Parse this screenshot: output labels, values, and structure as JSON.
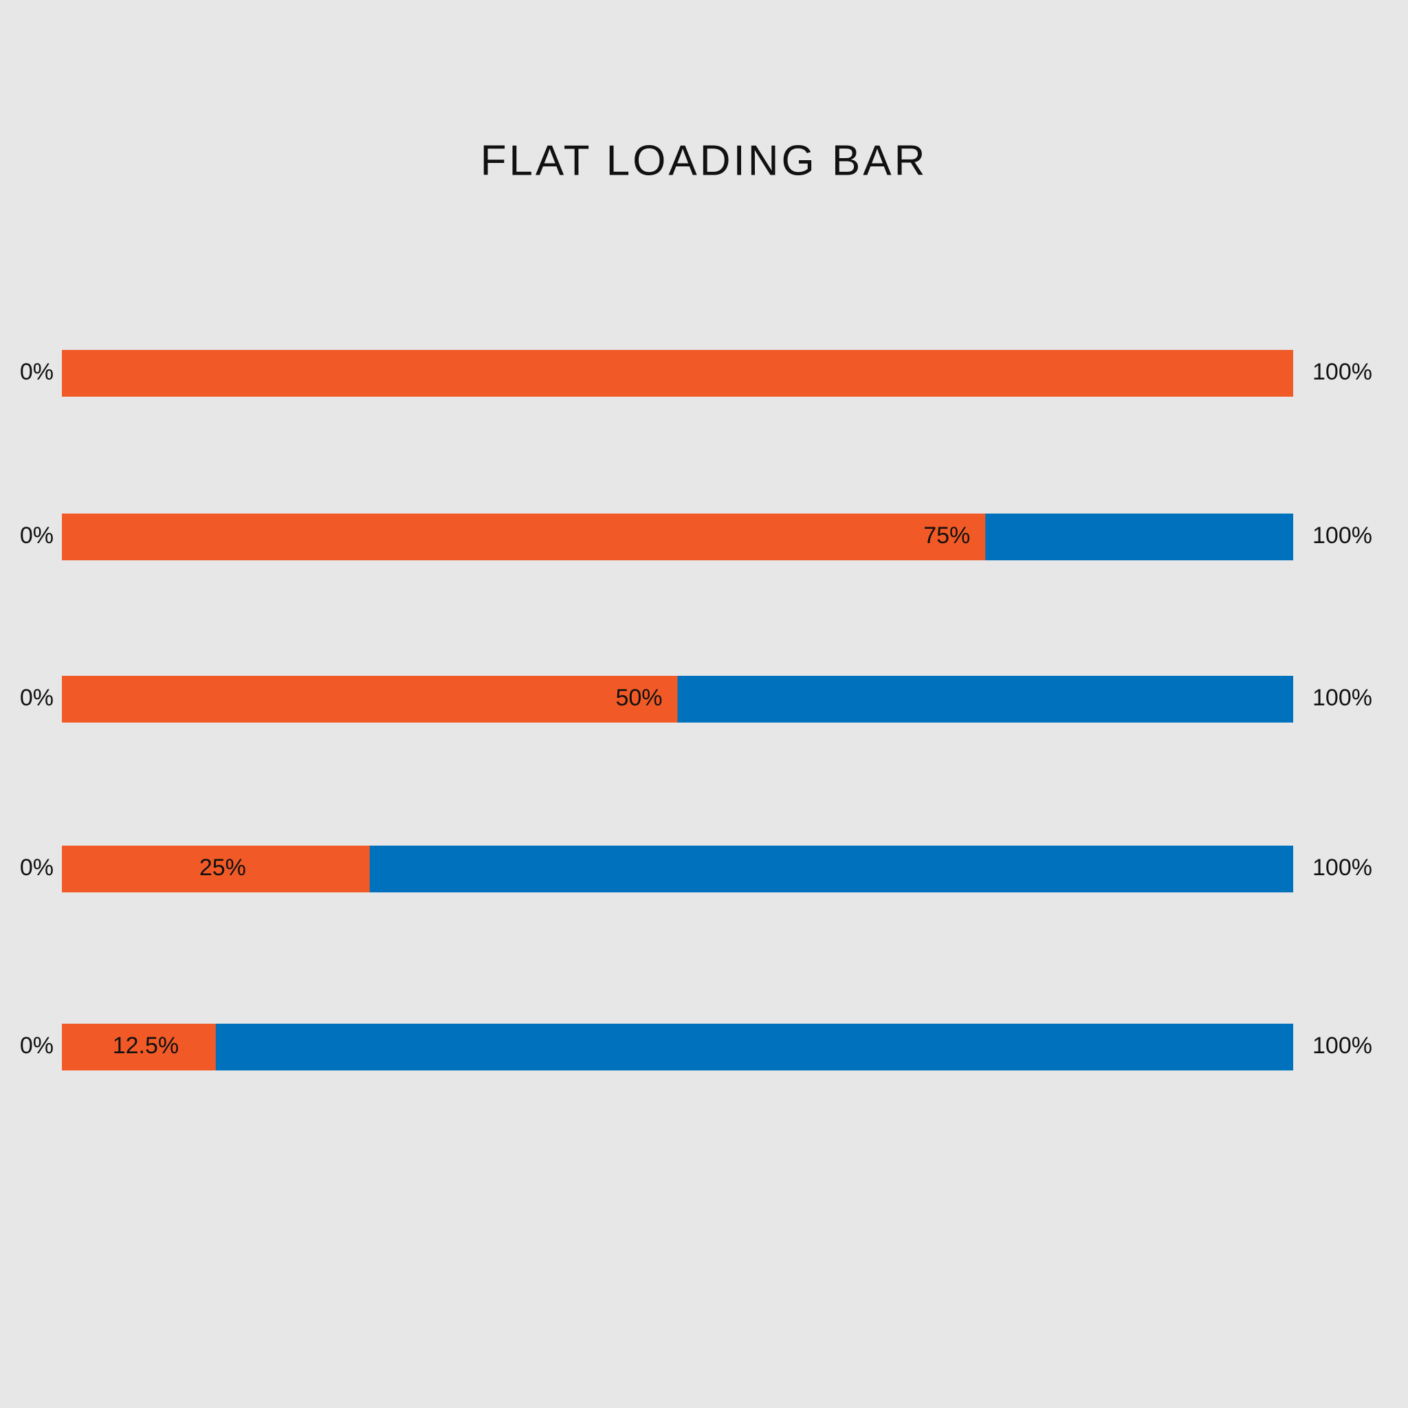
{
  "title": "FLAT LOADING BAR",
  "fill_color": "#f15a27",
  "track_color": "#0071bc",
  "bars": [
    {
      "min": {
        "value": 0,
        "label": "0%"
      },
      "max": {
        "value": 100,
        "label": "100%"
      },
      "value": 100
    },
    {
      "min": {
        "value": 0,
        "label": "0%"
      },
      "max": {
        "value": 100,
        "label": "100%"
      },
      "value": 75,
      "value_label": "75%"
    },
    {
      "min": {
        "value": 0,
        "label": "0%"
      },
      "max": {
        "value": 100,
        "label": "100%"
      },
      "value": 50,
      "value_label": "50%"
    },
    {
      "min": {
        "value": 0,
        "label": "0%"
      },
      "max": {
        "value": 100,
        "label": "100%"
      },
      "value": 25,
      "value_label": "25%"
    },
    {
      "min": {
        "value": 0,
        "label": "0%"
      },
      "max": {
        "value": 100,
        "label": "100%"
      },
      "value": 12.5,
      "value_label": "12.5%"
    }
  ]
}
